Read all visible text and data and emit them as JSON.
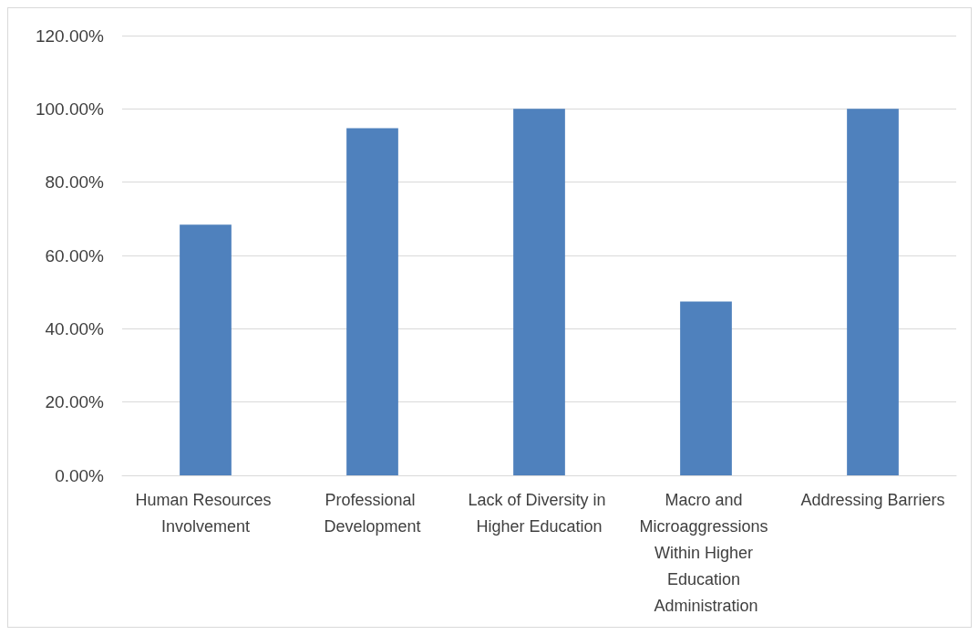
{
  "chart_data": {
    "type": "bar",
    "categories": [
      "Human Resources Involvement",
      "Professional Development",
      "Lack of Diversity in Higher Education",
      "Macro and Microaggressions Within Higher Education Administration",
      "Addressing Barriers"
    ],
    "values": [
      68.4,
      94.7,
      100,
      47.4,
      100
    ],
    "color": "#4f81bd",
    "ylim": [
      0,
      120
    ],
    "yticks": [
      {
        "value": 0,
        "label": "0.00%"
      },
      {
        "value": 20,
        "label": "20.00%"
      },
      {
        "value": 40,
        "label": "40.00%"
      },
      {
        "value": 60,
        "label": "60.00%"
      },
      {
        "value": 80,
        "label": "80.00%"
      },
      {
        "value": 100,
        "label": "100.00%"
      },
      {
        "value": 120,
        "label": "120.00%"
      }
    ],
    "grid": "y"
  }
}
